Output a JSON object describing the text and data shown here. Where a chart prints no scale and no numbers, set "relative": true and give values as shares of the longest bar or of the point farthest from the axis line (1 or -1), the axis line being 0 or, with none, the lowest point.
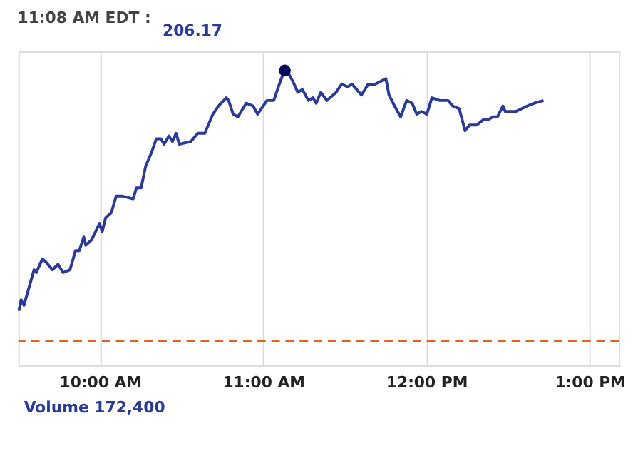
{
  "chart_data": {
    "type": "line",
    "relative": true,
    "title": "11:08 AM EDT :",
    "annotations": [
      "206.17",
      "Volume 172,400"
    ],
    "xlim": [
      9.5,
      13.18
    ],
    "xticks": [
      {
        "value": 10,
        "label": "10:00 AM"
      },
      {
        "value": 11,
        "label": "11:00 AM"
      },
      {
        "value": 12,
        "label": "12:00 PM"
      },
      {
        "value": 13,
        "label": "1:00 PM"
      }
    ],
    "grid": "x",
    "line_style": "solid",
    "series": [
      {
        "color": "#2a3a96",
        "marker": "none",
        "x": [
          9.503,
          9.517,
          9.534,
          9.553,
          9.596,
          9.61,
          9.647,
          9.667,
          9.709,
          9.743,
          9.774,
          9.816,
          9.85,
          9.873,
          9.901,
          9.913,
          9.949,
          9.997,
          10.014,
          10.034,
          10.07,
          10.099,
          10.138,
          10.203,
          10.223,
          10.252,
          10.28,
          10.316,
          10.345,
          10.373,
          10.393,
          10.422,
          10.444,
          10.466,
          10.486,
          10.557,
          10.599,
          10.642,
          10.692,
          10.726,
          10.774,
          10.788,
          10.816,
          10.845,
          10.896,
          10.938,
          10.966,
          11.023,
          11.065,
          11.099,
          11.136,
          11.182,
          11.212,
          11.24,
          11.277,
          11.305,
          11.325,
          11.353,
          11.39,
          11.447,
          11.481,
          11.517,
          11.545,
          11.602,
          11.644,
          11.686,
          11.752,
          11.771,
          11.805,
          11.842,
          11.879,
          11.913,
          11.941,
          11.969,
          12.003,
          12.034,
          12.082,
          12.133,
          12.161,
          12.201,
          12.237,
          12.265,
          12.308,
          12.35,
          12.379,
          12.407,
          12.435,
          12.469,
          12.483,
          12.548,
          12.619,
          12.661,
          12.718
        ],
        "values": [
          0.11,
          0.15,
          0.13,
          0.17,
          0.26,
          0.25,
          0.3,
          0.29,
          0.26,
          0.28,
          0.25,
          0.26,
          0.33,
          0.33,
          0.38,
          0.35,
          0.37,
          0.43,
          0.4,
          0.45,
          0.47,
          0.53,
          0.53,
          0.52,
          0.56,
          0.56,
          0.64,
          0.69,
          0.74,
          0.74,
          0.72,
          0.75,
          0.73,
          0.76,
          0.72,
          0.73,
          0.76,
          0.76,
          0.83,
          0.86,
          0.89,
          0.88,
          0.83,
          0.82,
          0.87,
          0.86,
          0.83,
          0.88,
          0.88,
          0.94,
          1.0,
          0.95,
          0.91,
          0.92,
          0.88,
          0.89,
          0.87,
          0.91,
          0.88,
          0.91,
          0.94,
          0.93,
          0.94,
          0.9,
          0.94,
          0.94,
          0.96,
          0.9,
          0.86,
          0.82,
          0.88,
          0.87,
          0.83,
          0.84,
          0.83,
          0.89,
          0.88,
          0.88,
          0.86,
          0.85,
          0.77,
          0.79,
          0.79,
          0.81,
          0.81,
          0.82,
          0.82,
          0.86,
          0.84,
          0.84,
          0.86,
          0.87,
          0.88
        ]
      },
      {
        "type": "scatter",
        "color": "#0a0a5a",
        "marker": "circle",
        "x": [
          11.133
        ],
        "values": [
          0.99
        ]
      }
    ],
    "ref_lines": [
      {
        "axis": "y",
        "value": 0,
        "color": "#e8601c",
        "line_style": "dashed"
      }
    ]
  }
}
